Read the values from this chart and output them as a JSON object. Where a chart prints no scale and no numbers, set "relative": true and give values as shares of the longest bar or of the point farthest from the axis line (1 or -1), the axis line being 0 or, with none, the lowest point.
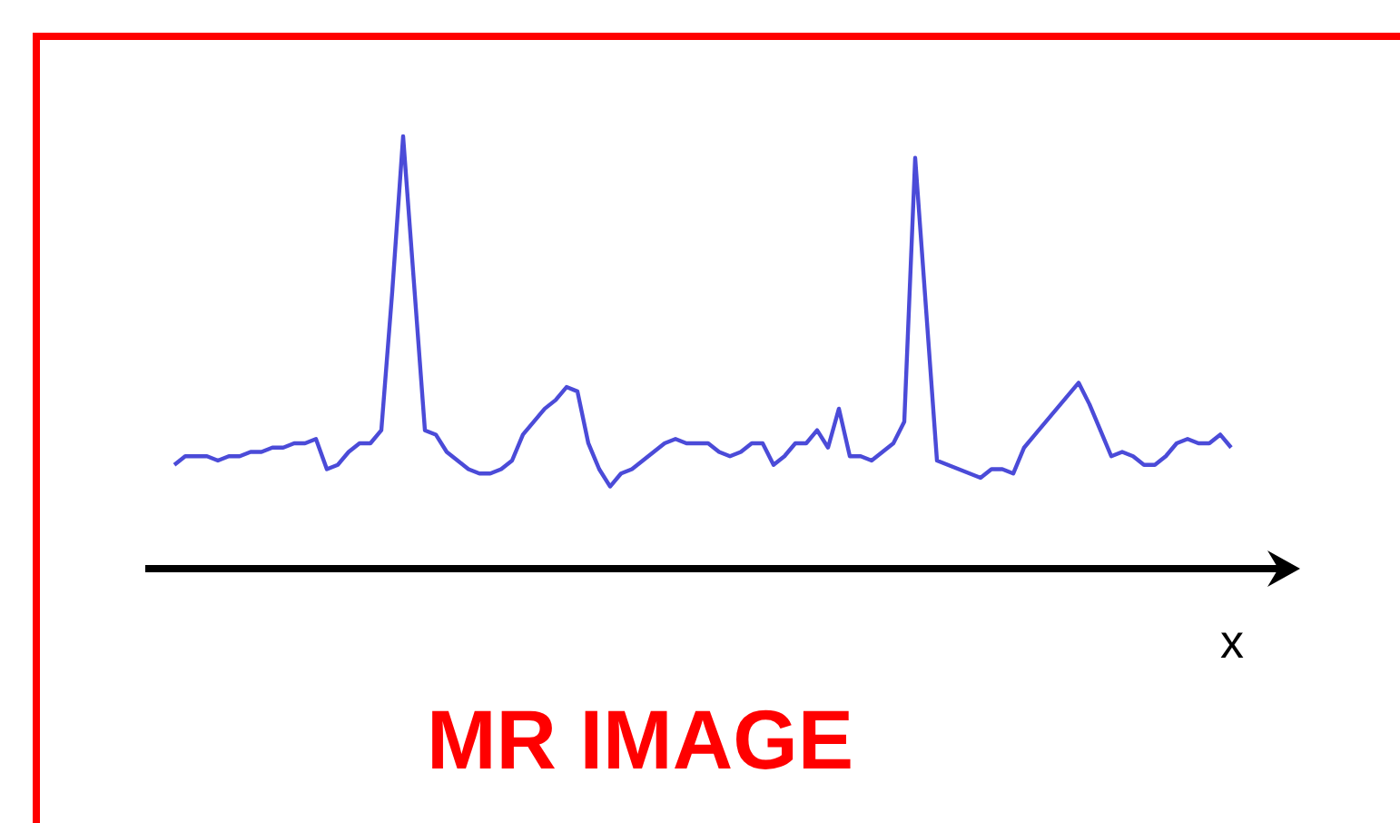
{
  "chart_data": {
    "type": "line",
    "title": "MR IMAGE",
    "xlabel": "x",
    "relative": true,
    "legend": false,
    "marker": "none",
    "line_style": "solid",
    "categories": [
      null,
      null,
      null,
      null,
      null,
      null,
      null,
      null,
      null,
      null,
      null,
      null,
      null,
      null,
      null,
      null,
      null,
      null,
      null,
      null,
      null,
      null,
      null,
      null,
      null,
      null,
      null,
      null,
      null,
      null,
      null,
      null,
      null,
      null,
      null,
      null,
      null,
      null,
      null,
      null,
      null,
      null,
      null,
      null,
      null,
      null,
      null,
      null,
      null,
      null,
      null,
      null,
      null,
      null,
      null,
      null,
      null,
      null,
      null,
      null,
      null,
      null,
      null,
      null,
      null,
      null,
      null,
      null,
      null,
      null,
      null,
      null,
      null,
      null,
      null,
      null,
      null,
      null,
      null,
      null,
      null,
      null,
      null,
      null,
      null,
      null,
      null,
      null,
      null,
      null,
      null,
      null,
      null,
      null,
      null,
      null,
      null,
      null
    ],
    "series": [
      {
        "color": "#4b4bd8",
        "values": [
          0.24,
          0.26,
          0.26,
          0.26,
          0.25,
          0.26,
          0.26,
          0.27,
          0.27,
          0.28,
          0.28,
          0.29,
          0.29,
          0.3,
          0.23,
          0.24,
          0.27,
          0.29,
          0.29,
          0.32,
          0.64,
          1,
          0.66,
          0.32,
          0.31,
          0.27,
          0.25,
          0.23,
          0.22,
          0.22,
          0.23,
          0.25,
          0.31,
          0.34,
          0.37,
          0.39,
          0.42,
          0.41,
          0.29,
          0.23,
          0.19,
          0.22,
          0.23,
          0.25,
          0.27,
          0.29,
          0.3,
          0.29,
          0.29,
          0.29,
          0.27,
          0.26,
          0.27,
          0.29,
          0.29,
          0.24,
          0.26,
          0.29,
          0.29,
          0.32,
          0.28,
          0.37,
          0.26,
          0.26,
          0.25,
          0.27,
          0.29,
          0.34,
          0.95,
          0.6,
          0.25,
          0.24,
          0.23,
          0.22,
          0.21,
          0.23,
          0.23,
          0.22,
          0.28,
          0.31,
          0.34,
          0.37,
          0.4,
          0.43,
          0.38,
          0.32,
          0.26,
          0.27,
          0.26,
          0.24,
          0.24,
          0.26,
          0.29,
          0.3,
          0.29,
          0.29,
          0.31,
          0.28
        ]
      }
    ]
  }
}
